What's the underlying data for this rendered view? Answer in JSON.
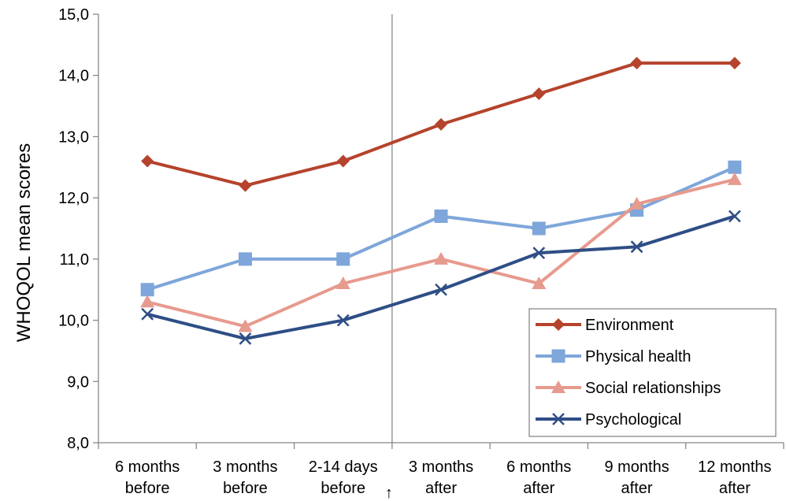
{
  "chart_data": {
    "type": "line",
    "categories": [
      [
        "6 months",
        "before"
      ],
      [
        "3 months",
        "before"
      ],
      [
        "2-14 days",
        "before"
      ],
      [
        "3 months",
        "after"
      ],
      [
        "6 months",
        "after"
      ],
      [
        "9 months",
        "after"
      ],
      [
        "12 months",
        "after"
      ]
    ],
    "ylabel": "WHOQOL mean scores",
    "ylim": [
      8.0,
      15.0
    ],
    "yticks": [
      "8,0",
      "9,0",
      "10,0",
      "11,0",
      "12,0",
      "13,0",
      "14,0",
      "15,0"
    ],
    "grid": false,
    "legend_position": "bottom-right",
    "divider_after_category": 2,
    "divider_marker": "↑",
    "series": [
      {
        "name": "Environment",
        "color": "#B5432D",
        "marker": "diamond",
        "values": [
          12.6,
          12.2,
          12.6,
          13.2,
          13.7,
          14.2,
          14.2
        ]
      },
      {
        "name": "Physical health",
        "color": "#7EA6DA",
        "marker": "square",
        "values": [
          10.5,
          11.0,
          11.0,
          11.7,
          11.5,
          11.8,
          12.5
        ]
      },
      {
        "name": "Social relationships",
        "color": "#E79A8E",
        "marker": "triangle",
        "values": [
          10.3,
          9.9,
          10.6,
          11.0,
          10.6,
          11.9,
          12.3
        ]
      },
      {
        "name": "Psychological",
        "color": "#2E4E85",
        "marker": "x",
        "values": [
          10.1,
          9.7,
          10.0,
          10.5,
          11.1,
          11.2,
          11.7
        ]
      }
    ]
  }
}
